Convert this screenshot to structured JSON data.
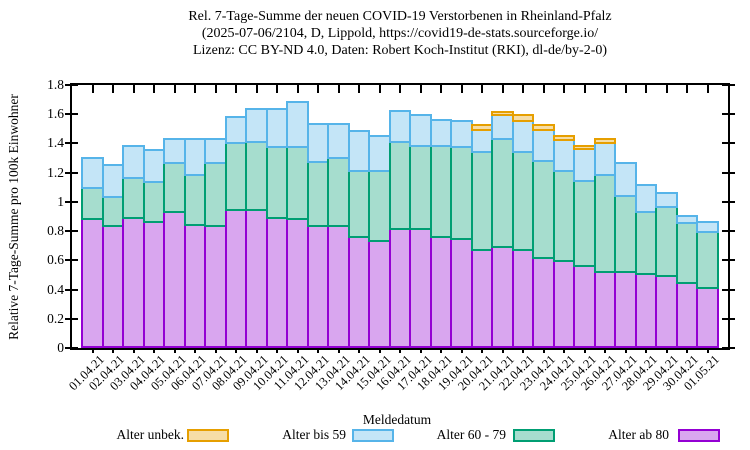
{
  "title": {
    "line1": "Rel. 7-Tage-Summe der neuen COVID-19 Verstorbenen in Rheinland-Pfalz",
    "line2": "(2025-07-06/2104, D, Lippold, https://covid19-de-stats.sourceforge.io/",
    "line3": "Lizenz: CC BY-ND 4.0, Daten: Robert Koch-Institut (RKI), dl-de/by-2-0)"
  },
  "y_axis": {
    "label": "Relative 7-Tage-Summe pro 100k Einwohner",
    "tick_labels": [
      "0",
      "0.2",
      "0.4",
      "0.6",
      "0.8",
      "1",
      "1.2",
      "1.4",
      "1.6",
      "1.8"
    ]
  },
  "x_axis": {
    "label": "Meldedatum"
  },
  "legend": [
    {
      "label": "Alter unbek.",
      "fill": "#f6dda6",
      "border": "#e69f00"
    },
    {
      "label": "Alter bis 59",
      "fill": "#c4e5f7",
      "border": "#56b4e9"
    },
    {
      "label": "Alter 60 - 79",
      "fill": "#a6ddce",
      "border": "#009e73"
    },
    {
      "label": "Alter ab 80",
      "fill": "#d9a6ef",
      "border": "#9400d3"
    }
  ],
  "chart_data": {
    "type": "bar",
    "stacked": true,
    "title": "Rel. 7-Tage-Summe der neuen COVID-19 Verstorbenen in Rheinland-Pfalz",
    "xlabel": "Meldedatum",
    "ylabel": "Relative 7-Tage-Summe pro 100k Einwohner",
    "ylim": [
      0,
      1.8
    ],
    "grid": false,
    "legend_position": "bottom",
    "categories": [
      "01.04.21",
      "02.04.21",
      "03.04.21",
      "04.04.21",
      "05.04.21",
      "06.04.21",
      "07.04.21",
      "08.04.21",
      "09.04.21",
      "10.04.21",
      "11.04.21",
      "12.04.21",
      "13.04.21",
      "14.04.21",
      "15.04.21",
      "16.04.21",
      "17.04.21",
      "18.04.21",
      "19.04.21",
      "20.04.21",
      "21.04.21",
      "22.04.21",
      "23.04.21",
      "24.04.21",
      "25.04.21",
      "26.04.21",
      "27.04.21",
      "28.04.21",
      "29.04.21",
      "30.04.21",
      "01.05.21"
    ],
    "series": [
      {
        "name": "Alter ab 80",
        "fill": "#d9a6ef",
        "border": "#9400d3",
        "values": [
          0.89,
          0.84,
          0.9,
          0.87,
          0.94,
          0.85,
          0.84,
          0.95,
          0.95,
          0.9,
          0.89,
          0.84,
          0.84,
          0.77,
          0.74,
          0.82,
          0.82,
          0.77,
          0.75,
          0.68,
          0.7,
          0.68,
          0.62,
          0.6,
          0.57,
          0.53,
          0.53,
          0.51,
          0.5,
          0.45,
          0.42
        ]
      },
      {
        "name": "Alter 60 - 79",
        "fill": "#a6ddce",
        "border": "#009e73",
        "values": [
          0.21,
          0.2,
          0.27,
          0.27,
          0.33,
          0.34,
          0.43,
          0.46,
          0.47,
          0.48,
          0.49,
          0.44,
          0.47,
          0.45,
          0.48,
          0.6,
          0.57,
          0.62,
          0.63,
          0.67,
          0.74,
          0.67,
          0.67,
          0.62,
          0.58,
          0.66,
          0.52,
          0.43,
          0.47,
          0.41,
          0.38
        ]
      },
      {
        "name": "Alter bis 59",
        "fill": "#c4e5f7",
        "border": "#56b4e9",
        "values": [
          0.21,
          0.22,
          0.22,
          0.22,
          0.17,
          0.25,
          0.17,
          0.18,
          0.22,
          0.26,
          0.31,
          0.26,
          0.23,
          0.27,
          0.24,
          0.21,
          0.21,
          0.18,
          0.18,
          0.15,
          0.16,
          0.21,
          0.21,
          0.21,
          0.22,
          0.22,
          0.22,
          0.18,
          0.1,
          0.05,
          0.07
        ]
      },
      {
        "name": "Alter unbek.",
        "fill": "#f6dda6",
        "border": "#e69f00",
        "values": [
          0,
          0,
          0,
          0,
          0,
          0,
          0,
          0,
          0,
          0,
          0,
          0,
          0,
          0,
          0,
          0,
          0,
          0,
          0,
          0.03,
          0.02,
          0.04,
          0.03,
          0.03,
          0.02,
          0.03,
          0,
          0,
          0,
          0,
          0
        ]
      }
    ]
  }
}
